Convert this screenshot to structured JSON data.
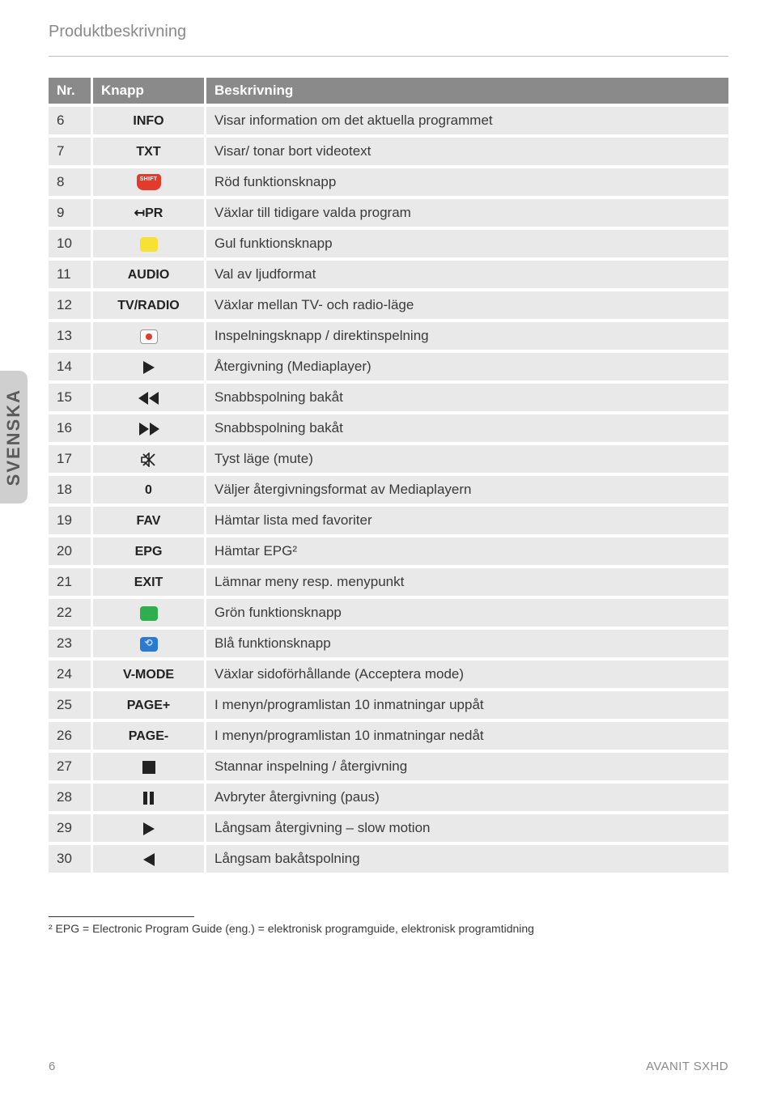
{
  "page": {
    "section_title": "Produktbeskrivning",
    "side_tab": "SVENSKA",
    "page_number": "6",
    "product_name": "AVANIT SXHD"
  },
  "table": {
    "headers": {
      "nr": "Nr.",
      "knapp": "Knapp",
      "desc": "Beskrivning"
    },
    "rows": [
      {
        "nr": "6",
        "knapp_type": "text",
        "knapp": "INFO",
        "desc": "Visar information om det aktuella programmet"
      },
      {
        "nr": "7",
        "knapp_type": "text",
        "knapp": "TXT",
        "desc": "Visar/ tonar bort videotext"
      },
      {
        "nr": "8",
        "knapp_type": "icon",
        "icon": "shift",
        "desc": "Röd funktionsknapp"
      },
      {
        "nr": "9",
        "knapp_type": "text",
        "knapp": "↤PR",
        "desc": "Växlar till tidigare valda program"
      },
      {
        "nr": "10",
        "knapp_type": "icon",
        "icon": "yellow",
        "desc": "Gul funktionsknapp"
      },
      {
        "nr": "11",
        "knapp_type": "text",
        "knapp": "AUDIO",
        "desc": "Val av ljudformat"
      },
      {
        "nr": "12",
        "knapp_type": "text",
        "knapp": "TV/RADIO",
        "desc": "Växlar mellan TV- och radio-läge"
      },
      {
        "nr": "13",
        "knapp_type": "icon",
        "icon": "recdot",
        "desc": "Inspelningsknapp / direktinspelning"
      },
      {
        "nr": "14",
        "knapp_type": "icon",
        "icon": "play",
        "desc": "Återgivning (Mediaplayer)"
      },
      {
        "nr": "15",
        "knapp_type": "icon",
        "icon": "rewind",
        "desc": "Snabbspolning bakåt"
      },
      {
        "nr": "16",
        "knapp_type": "icon",
        "icon": "fastfwd",
        "desc": "Snabbspolning bakåt"
      },
      {
        "nr": "17",
        "knapp_type": "icon",
        "icon": "mute",
        "desc": "Tyst läge (mute)"
      },
      {
        "nr": "18",
        "knapp_type": "text",
        "knapp": "0",
        "desc": "Väljer återgivningsformat av Mediaplayern"
      },
      {
        "nr": "19",
        "knapp_type": "text",
        "knapp": "FAV",
        "desc": "Hämtar lista med favoriter"
      },
      {
        "nr": "20",
        "knapp_type": "text",
        "knapp": "EPG",
        "desc": "Hämtar EPG²"
      },
      {
        "nr": "21",
        "knapp_type": "text",
        "knapp": "EXIT",
        "desc": "Lämnar meny resp. menypunkt"
      },
      {
        "nr": "22",
        "knapp_type": "icon",
        "icon": "green",
        "desc": "Grön funktionsknapp"
      },
      {
        "nr": "23",
        "knapp_type": "icon",
        "icon": "blue",
        "desc": "Blå funktionsknapp"
      },
      {
        "nr": "24",
        "knapp_type": "text",
        "knapp": "V-MODE",
        "desc": "Växlar sidoförhållande (Acceptera mode)"
      },
      {
        "nr": "25",
        "knapp_type": "text",
        "knapp": "PAGE+",
        "desc": "I menyn/programlistan 10 inmatningar uppåt"
      },
      {
        "nr": "26",
        "knapp_type": "text",
        "knapp": "PAGE-",
        "desc": "I menyn/programlistan 10 inmatningar nedåt"
      },
      {
        "nr": "27",
        "knapp_type": "icon",
        "icon": "stop",
        "desc": "Stannar inspelning / återgivning"
      },
      {
        "nr": "28",
        "knapp_type": "icon",
        "icon": "pause",
        "desc": "Avbryter återgivning (paus)"
      },
      {
        "nr": "29",
        "knapp_type": "icon",
        "icon": "play",
        "desc": "Långsam återgivning – slow motion"
      },
      {
        "nr": "30",
        "knapp_type": "icon",
        "icon": "playrev",
        "desc": "Långsam bakåtspolning"
      }
    ]
  },
  "footnote": "² EPG = Electronic Program Guide (eng.) = elektronisk programguide, elektronisk programtidning",
  "colors": {
    "header_bg": "#8a8a8a",
    "row_bg": "#e9e9e9",
    "red": "#e23b2e",
    "yellow": "#f7e233",
    "green": "#2fae4e",
    "blue": "#2a7ad1",
    "text_muted": "#8a8a8a"
  }
}
